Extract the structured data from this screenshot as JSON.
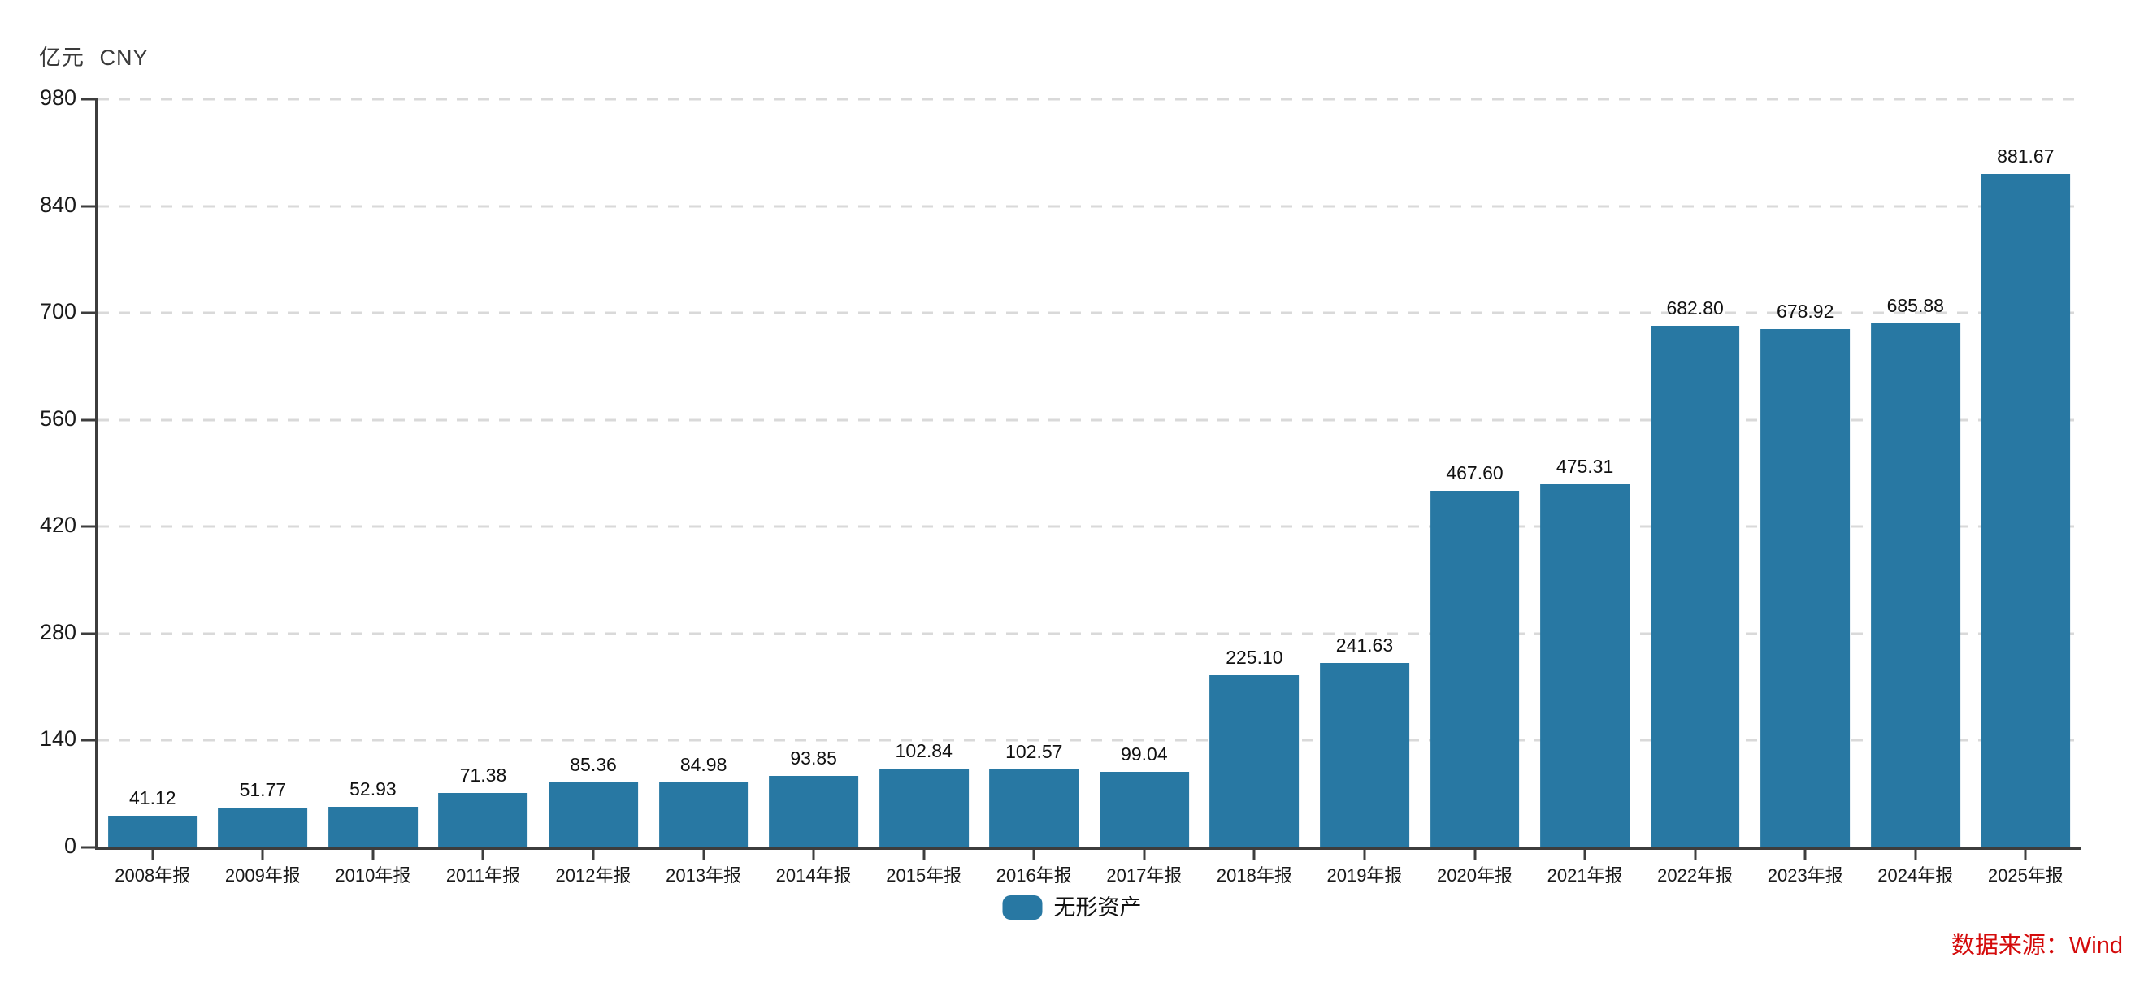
{
  "unit_label": "亿元 CNY",
  "source_label": "数据来源：Wind",
  "legend": {
    "label": "无形资产"
  },
  "colors": {
    "bar": "#2878a3",
    "grid": "#d9d9d9",
    "axis": "#3d3d3d",
    "text": "#1a1a1a",
    "source_text": "#d40b0b"
  },
  "chart_data": {
    "type": "bar",
    "unit": "亿元 CNY",
    "categories": [
      "2008年报",
      "2009年报",
      "2010年报",
      "2011年报",
      "2012年报",
      "2013年报",
      "2014年报",
      "2015年报",
      "2016年报",
      "2017年报",
      "2018年报",
      "2019年报",
      "2020年报",
      "2021年报",
      "2022年报",
      "2023年报",
      "2024年报",
      "2025年报"
    ],
    "series": [
      {
        "name": "无形资产",
        "values": [
          41.12,
          51.77,
          52.93,
          71.38,
          85.36,
          84.98,
          93.85,
          102.84,
          102.57,
          99.04,
          225.1,
          241.63,
          467.6,
          475.31,
          682.8,
          678.92,
          685.88,
          881.67
        ]
      }
    ],
    "value_labels": [
      "41.12",
      "51.77",
      "52.93",
      "71.38",
      "85.36",
      "84.98",
      "93.85",
      "102.84",
      "102.57",
      "99.04",
      "225.10",
      "241.63",
      "467.60",
      "475.31",
      "682.80",
      "678.92",
      "685.88",
      "881.67"
    ],
    "ylim": [
      0,
      980
    ],
    "yticks": [
      0,
      140,
      280,
      420,
      560,
      700,
      840,
      980
    ],
    "grid": "horizontal-dashed",
    "legend_position": "bottom-center",
    "value_labels_shown": true
  }
}
